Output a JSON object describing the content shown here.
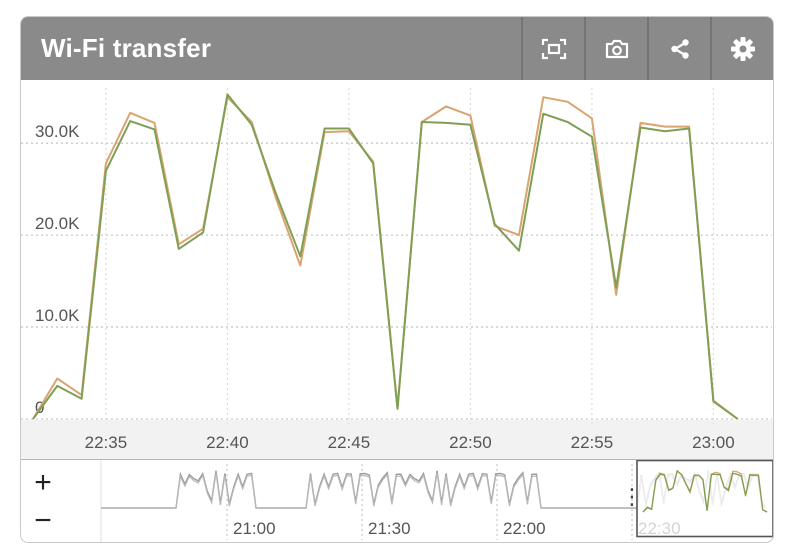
{
  "header": {
    "title": "Wi-Fi transfer",
    "tools": [
      {
        "name": "fullscreen",
        "icon": "fullscreen-icon"
      },
      {
        "name": "snapshot",
        "icon": "camera-icon"
      },
      {
        "name": "share",
        "icon": "share-icon"
      },
      {
        "name": "settings",
        "icon": "gear-icon"
      }
    ]
  },
  "colors": {
    "header": "#8a8a8a",
    "series_a": "#d9a46f",
    "series_b": "#7f9f55",
    "grid": "#c8c8c8",
    "axis_text": "#555555"
  },
  "chart_data": {
    "type": "line",
    "title": "Wi-Fi transfer",
    "xlabel": "",
    "ylabel": "",
    "x_start": "22:32",
    "x_step_minutes": 1,
    "xlim": [
      "22:32",
      "23:02"
    ],
    "ylim": [
      0,
      36000
    ],
    "y_ticks": [
      0,
      10000,
      20000,
      30000
    ],
    "y_tick_labels": [
      "0",
      "10.0K",
      "20.0K",
      "30.0K"
    ],
    "x_ticks": [
      "22:35",
      "22:40",
      "22:45",
      "22:50",
      "22:55",
      "23:00"
    ],
    "grid": true,
    "legend": "none",
    "series": [
      {
        "color": "#d9a46f",
        "values": [
          0,
          4400,
          2600,
          27800,
          33300,
          32200,
          19000,
          20700,
          35000,
          32300,
          24000,
          16700,
          31200,
          31300,
          28000,
          1200,
          32300,
          34000,
          33000,
          21000,
          20000,
          35000,
          34500,
          32700,
          13500,
          32200,
          31800,
          31800,
          2000,
          0
        ]
      },
      {
        "color": "#7f9f55",
        "values": [
          0,
          3600,
          2200,
          27000,
          32400,
          31500,
          18500,
          20300,
          35300,
          32000,
          24500,
          17700,
          31600,
          31600,
          27800,
          1100,
          32300,
          32200,
          32000,
          21200,
          18300,
          33200,
          32300,
          30700,
          14300,
          31700,
          31300,
          31600,
          1900,
          0
        ]
      }
    ]
  },
  "navigator": {
    "zoom_in_label": "+",
    "zoom_out_label": "−",
    "x_ticks": [
      "21:00",
      "21:30",
      "22:00",
      "22:30"
    ],
    "handle_label": "⋮"
  }
}
